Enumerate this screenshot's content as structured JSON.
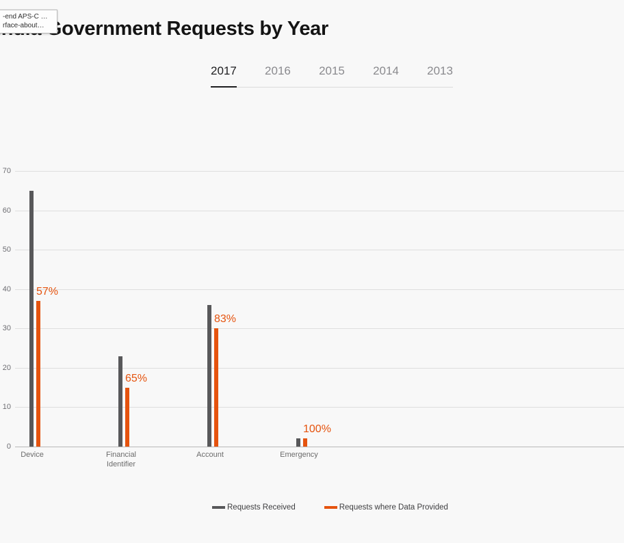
{
  "overlay_tooltip": {
    "lines": [
      "-end APS-C …",
      "rface-about…"
    ]
  },
  "header": {
    "title": "India Government Requests by Year"
  },
  "tabs": [
    {
      "label": "2017",
      "active": true
    },
    {
      "label": "2016",
      "active": false
    },
    {
      "label": "2015",
      "active": false
    },
    {
      "label": "2014",
      "active": false
    },
    {
      "label": "2013",
      "active": false
    }
  ],
  "chart_data": {
    "type": "bar",
    "title": "India Government Requests by Year",
    "selected_year": "2017",
    "categories": [
      "Device",
      "Financial Identifier",
      "Account",
      "Emergency"
    ],
    "category_label_lines": [
      [
        "Device"
      ],
      [
        "Financial",
        "Identifier"
      ],
      [
        "Account"
      ],
      [
        "Emergency"
      ]
    ],
    "series": [
      {
        "name": "Requests Received",
        "color": "#58585a",
        "values": [
          65,
          23,
          36,
          2
        ]
      },
      {
        "name": "Requests where Data Provided",
        "color": "#e5530e",
        "values": [
          37,
          15,
          30,
          2
        ]
      }
    ],
    "percent_labels": [
      "57%",
      "65%",
      "83%",
      "100%"
    ],
    "ylim": [
      0,
      70
    ],
    "yticks": [
      0,
      10,
      20,
      30,
      40,
      50,
      60,
      70
    ],
    "grid": true,
    "legend_position": "bottom"
  },
  "colors": {
    "background": "#f8f8f8",
    "bar_gray": "#58585a",
    "bar_orange": "#e5530e",
    "gridline": "#dedede",
    "axis_line": "#b8b8b8",
    "active_tab": "#1d1d1f",
    "inactive_tab": "#8a8a8e"
  }
}
